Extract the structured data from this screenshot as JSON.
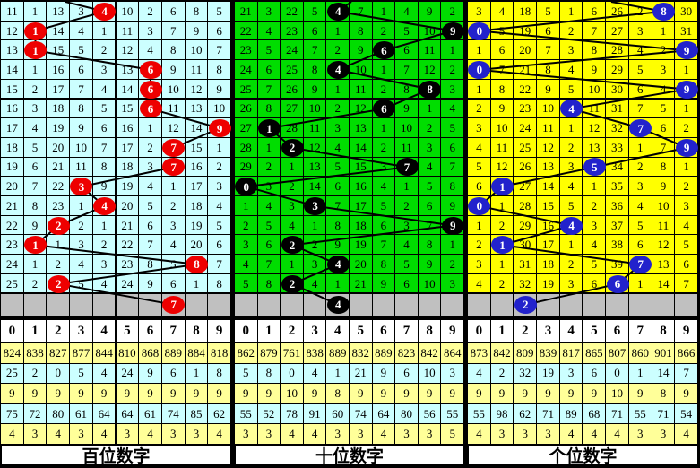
{
  "digits_header": [
    "0",
    "1",
    "2",
    "3",
    "4",
    "5",
    "6",
    "7",
    "8",
    "9"
  ],
  "colors": {
    "frame": "#000000",
    "hundreds_bg": "#CCFFFF",
    "tens_bg": "#00DD00",
    "units_bg": "#FFFF00",
    "hundreds_ball": "#EE0000",
    "tens_ball": "#000000",
    "units_ball": "#2222CC",
    "ball_text": "#FFFFFF",
    "pending_row_bg": "#C0C0C0",
    "stat_row_yellow": "#FFFF99",
    "stat_row_cyan": "#CCFFFF",
    "header_bg": "#FFFFFF",
    "trend_line": "#000000"
  },
  "panels": [
    {
      "id": "hundreds",
      "footer_label": "百位数字",
      "bg": "#CCFFFF",
      "ball_color": "#EE0000",
      "entry_x": 72,
      "rows": [
        {
          "ball_col": 4,
          "cells": [
            "11",
            "1",
            "13",
            "3",
            "4",
            "10",
            "2",
            "6",
            "8",
            "5"
          ]
        },
        {
          "ball_col": 1,
          "cells": [
            "12",
            "1",
            "14",
            "4",
            "1",
            "11",
            "3",
            "7",
            "9",
            "6"
          ]
        },
        {
          "ball_col": 1,
          "cells": [
            "13",
            "1",
            "15",
            "5",
            "2",
            "12",
            "4",
            "8",
            "10",
            "7"
          ]
        },
        {
          "ball_col": 6,
          "cells": [
            "14",
            "1",
            "16",
            "6",
            "3",
            "13",
            "6",
            "9",
            "11",
            "8"
          ]
        },
        {
          "ball_col": 6,
          "cells": [
            "15",
            "2",
            "17",
            "7",
            "4",
            "14",
            "6",
            "10",
            "12",
            "9"
          ]
        },
        {
          "ball_col": 6,
          "cells": [
            "16",
            "3",
            "18",
            "8",
            "5",
            "15",
            "6",
            "11",
            "13",
            "10"
          ]
        },
        {
          "ball_col": 9,
          "cells": [
            "17",
            "4",
            "19",
            "9",
            "6",
            "16",
            "1",
            "12",
            "14",
            "9"
          ]
        },
        {
          "ball_col": 7,
          "cells": [
            "18",
            "5",
            "20",
            "10",
            "7",
            "17",
            "2",
            "7",
            "15",
            "1"
          ]
        },
        {
          "ball_col": 7,
          "cells": [
            "19",
            "6",
            "21",
            "11",
            "8",
            "18",
            "3",
            "7",
            "16",
            "2"
          ]
        },
        {
          "ball_col": 3,
          "cells": [
            "20",
            "7",
            "22",
            "3",
            "9",
            "19",
            "4",
            "1",
            "17",
            "3"
          ]
        },
        {
          "ball_col": 4,
          "cells": [
            "21",
            "8",
            "23",
            "1",
            "4",
            "20",
            "5",
            "2",
            "18",
            "4"
          ]
        },
        {
          "ball_col": 2,
          "cells": [
            "22",
            "9",
            "2",
            "2",
            "1",
            "21",
            "6",
            "3",
            "19",
            "5"
          ]
        },
        {
          "ball_col": 1,
          "cells": [
            "23",
            "1",
            "1",
            "3",
            "2",
            "22",
            "7",
            "4",
            "20",
            "6"
          ]
        },
        {
          "ball_col": 8,
          "cells": [
            "24",
            "1",
            "2",
            "4",
            "3",
            "23",
            "8",
            "5",
            "8",
            "7"
          ]
        },
        {
          "ball_col": 2,
          "cells": [
            "25",
            "2",
            "2",
            "5",
            "4",
            "24",
            "9",
            "6",
            "1",
            "8"
          ]
        }
      ],
      "next_ball": {
        "col": 7,
        "value": "7"
      },
      "stats": [
        [
          "824",
          "838",
          "827",
          "877",
          "844",
          "810",
          "868",
          "889",
          "884",
          "818"
        ],
        [
          "25",
          "2",
          "0",
          "5",
          "4",
          "24",
          "9",
          "6",
          "1",
          "8"
        ],
        [
          "9",
          "9",
          "9",
          "9",
          "9",
          "9",
          "9",
          "9",
          "9",
          "9"
        ],
        [
          "75",
          "72",
          "80",
          "61",
          "64",
          "64",
          "61",
          "74",
          "85",
          "62"
        ],
        [
          "4",
          "3",
          "4",
          "3",
          "4",
          "3",
          "4",
          "3",
          "3",
          "4"
        ]
      ]
    },
    {
      "id": "tens",
      "footer_label": "十位数字",
      "bg": "#00DD00",
      "ball_color": "#000000",
      "entry_x": 130,
      "rows": [
        {
          "ball_col": 4,
          "cells": [
            "21",
            "3",
            "22",
            "5",
            "4",
            "7",
            "1",
            "4",
            "9",
            "2"
          ]
        },
        {
          "ball_col": 9,
          "cells": [
            "22",
            "4",
            "23",
            "6",
            "1",
            "8",
            "2",
            "5",
            "10",
            "9"
          ]
        },
        {
          "ball_col": 6,
          "cells": [
            "23",
            "5",
            "24",
            "7",
            "2",
            "9",
            "6",
            "6",
            "11",
            "1"
          ]
        },
        {
          "ball_col": 4,
          "cells": [
            "24",
            "6",
            "25",
            "8",
            "4",
            "10",
            "1",
            "7",
            "12",
            "2"
          ]
        },
        {
          "ball_col": 8,
          "cells": [
            "25",
            "7",
            "26",
            "9",
            "1",
            "11",
            "2",
            "8",
            "8",
            "3"
          ]
        },
        {
          "ball_col": 6,
          "cells": [
            "26",
            "8",
            "27",
            "10",
            "2",
            "12",
            "6",
            "9",
            "1",
            "4"
          ]
        },
        {
          "ball_col": 1,
          "cells": [
            "27",
            "1",
            "28",
            "11",
            "3",
            "13",
            "1",
            "10",
            "2",
            "5"
          ]
        },
        {
          "ball_col": 2,
          "cells": [
            "28",
            "1",
            "2",
            "12",
            "4",
            "14",
            "2",
            "11",
            "3",
            "6"
          ]
        },
        {
          "ball_col": 7,
          "cells": [
            "29",
            "2",
            "1",
            "13",
            "5",
            "15",
            "3",
            "7",
            "4",
            "7"
          ]
        },
        {
          "ball_col": 0,
          "cells": [
            "0",
            "3",
            "2",
            "14",
            "6",
            "16",
            "4",
            "1",
            "5",
            "8"
          ]
        },
        {
          "ball_col": 3,
          "cells": [
            "1",
            "4",
            "3",
            "3",
            "7",
            "17",
            "5",
            "2",
            "6",
            "9"
          ]
        },
        {
          "ball_col": 9,
          "cells": [
            "2",
            "5",
            "4",
            "1",
            "8",
            "18",
            "6",
            "3",
            "7",
            "9"
          ]
        },
        {
          "ball_col": 2,
          "cells": [
            "3",
            "6",
            "2",
            "2",
            "9",
            "19",
            "7",
            "4",
            "8",
            "1"
          ]
        },
        {
          "ball_col": 4,
          "cells": [
            "4",
            "7",
            "1",
            "3",
            "4",
            "20",
            "8",
            "5",
            "9",
            "2"
          ]
        },
        {
          "ball_col": 2,
          "cells": [
            "5",
            "8",
            "2",
            "4",
            "1",
            "21",
            "9",
            "6",
            "10",
            "3"
          ]
        }
      ],
      "next_ball": {
        "col": 4,
        "value": "4"
      },
      "stats": [
        [
          "862",
          "879",
          "761",
          "838",
          "889",
          "832",
          "889",
          "823",
          "842",
          "864"
        ],
        [
          "5",
          "8",
          "0",
          "4",
          "1",
          "21",
          "9",
          "6",
          "10",
          "3"
        ],
        [
          "9",
          "9",
          "10",
          "9",
          "8",
          "9",
          "9",
          "9",
          "9",
          "9"
        ],
        [
          "55",
          "52",
          "78",
          "91",
          "60",
          "74",
          "64",
          "80",
          "56",
          "55"
        ],
        [
          "3",
          "3",
          "4",
          "4",
          "3",
          "3",
          "4",
          "3",
          "3",
          "5"
        ]
      ]
    },
    {
      "id": "units",
      "footer_label": "个位数字",
      "bg": "#FFFF00",
      "ball_color": "#2222CC",
      "entry_x": 160,
      "rows": [
        {
          "ball_col": 8,
          "cells": [
            "3",
            "4",
            "18",
            "5",
            "1",
            "6",
            "26",
            "2",
            "8",
            "30"
          ]
        },
        {
          "ball_col": 0,
          "cells": [
            "0",
            "5",
            "19",
            "6",
            "2",
            "7",
            "27",
            "3",
            "1",
            "31"
          ]
        },
        {
          "ball_col": 9,
          "cells": [
            "1",
            "6",
            "20",
            "7",
            "3",
            "8",
            "28",
            "4",
            "2",
            "9"
          ]
        },
        {
          "ball_col": 0,
          "cells": [
            "0",
            "7",
            "21",
            "8",
            "4",
            "9",
            "29",
            "5",
            "3",
            "1"
          ]
        },
        {
          "ball_col": 9,
          "cells": [
            "1",
            "8",
            "22",
            "9",
            "5",
            "10",
            "30",
            "6",
            "4",
            "9"
          ]
        },
        {
          "ball_col": 4,
          "cells": [
            "2",
            "9",
            "23",
            "10",
            "4",
            "11",
            "31",
            "7",
            "5",
            "1"
          ]
        },
        {
          "ball_col": 7,
          "cells": [
            "3",
            "10",
            "24",
            "11",
            "1",
            "12",
            "32",
            "7",
            "6",
            "2"
          ]
        },
        {
          "ball_col": 9,
          "cells": [
            "4",
            "11",
            "25",
            "12",
            "2",
            "13",
            "33",
            "1",
            "7",
            "9"
          ]
        },
        {
          "ball_col": 5,
          "cells": [
            "5",
            "12",
            "26",
            "13",
            "3",
            "5",
            "34",
            "2",
            "8",
            "1"
          ]
        },
        {
          "ball_col": 1,
          "cells": [
            "6",
            "1",
            "27",
            "14",
            "4",
            "1",
            "35",
            "3",
            "9",
            "2"
          ]
        },
        {
          "ball_col": 0,
          "cells": [
            "0",
            "1",
            "28",
            "15",
            "5",
            "2",
            "36",
            "4",
            "10",
            "3"
          ]
        },
        {
          "ball_col": 4,
          "cells": [
            "1",
            "2",
            "29",
            "16",
            "4",
            "3",
            "37",
            "5",
            "11",
            "4"
          ]
        },
        {
          "ball_col": 1,
          "cells": [
            "2",
            "1",
            "30",
            "17",
            "1",
            "4",
            "38",
            "6",
            "12",
            "5"
          ]
        },
        {
          "ball_col": 7,
          "cells": [
            "3",
            "1",
            "31",
            "18",
            "2",
            "5",
            "39",
            "7",
            "13",
            "6"
          ]
        },
        {
          "ball_col": 6,
          "cells": [
            "4",
            "2",
            "32",
            "19",
            "3",
            "6",
            "6",
            "1",
            "14",
            "7"
          ]
        }
      ],
      "next_ball": {
        "col": 2,
        "value": "2"
      },
      "stats": [
        [
          "873",
          "842",
          "809",
          "839",
          "817",
          "865",
          "807",
          "860",
          "901",
          "866"
        ],
        [
          "4",
          "2",
          "32",
          "19",
          "3",
          "6",
          "0",
          "1",
          "14",
          "7"
        ],
        [
          "9",
          "9",
          "9",
          "9",
          "9",
          "9",
          "10",
          "9",
          "8",
          "9"
        ],
        [
          "55",
          "98",
          "62",
          "71",
          "89",
          "68",
          "71",
          "55",
          "71",
          "54"
        ],
        [
          "4",
          "3",
          "3",
          "3",
          "4",
          "4",
          "4",
          "3",
          "3",
          "4"
        ]
      ]
    }
  ],
  "chart_data": {
    "type": "table",
    "title": "",
    "x_categories": [
      "0",
      "1",
      "2",
      "3",
      "4",
      "5",
      "6",
      "7",
      "8",
      "9"
    ],
    "series": [
      {
        "name": "百位数字",
        "drawn_digits": [
          4,
          1,
          1,
          6,
          6,
          6,
          9,
          7,
          7,
          3,
          4,
          2,
          1,
          8,
          2
        ],
        "next_hint": 7
      },
      {
        "name": "十位数字",
        "drawn_digits": [
          4,
          9,
          6,
          4,
          8,
          6,
          1,
          2,
          7,
          0,
          3,
          9,
          2,
          4,
          2
        ],
        "next_hint": 4
      },
      {
        "name": "个位数字",
        "drawn_digits": [
          8,
          0,
          9,
          0,
          9,
          4,
          7,
          9,
          5,
          1,
          0,
          4,
          1,
          7,
          6
        ],
        "next_hint": 2
      }
    ],
    "legend_position": "none",
    "grid": true
  }
}
